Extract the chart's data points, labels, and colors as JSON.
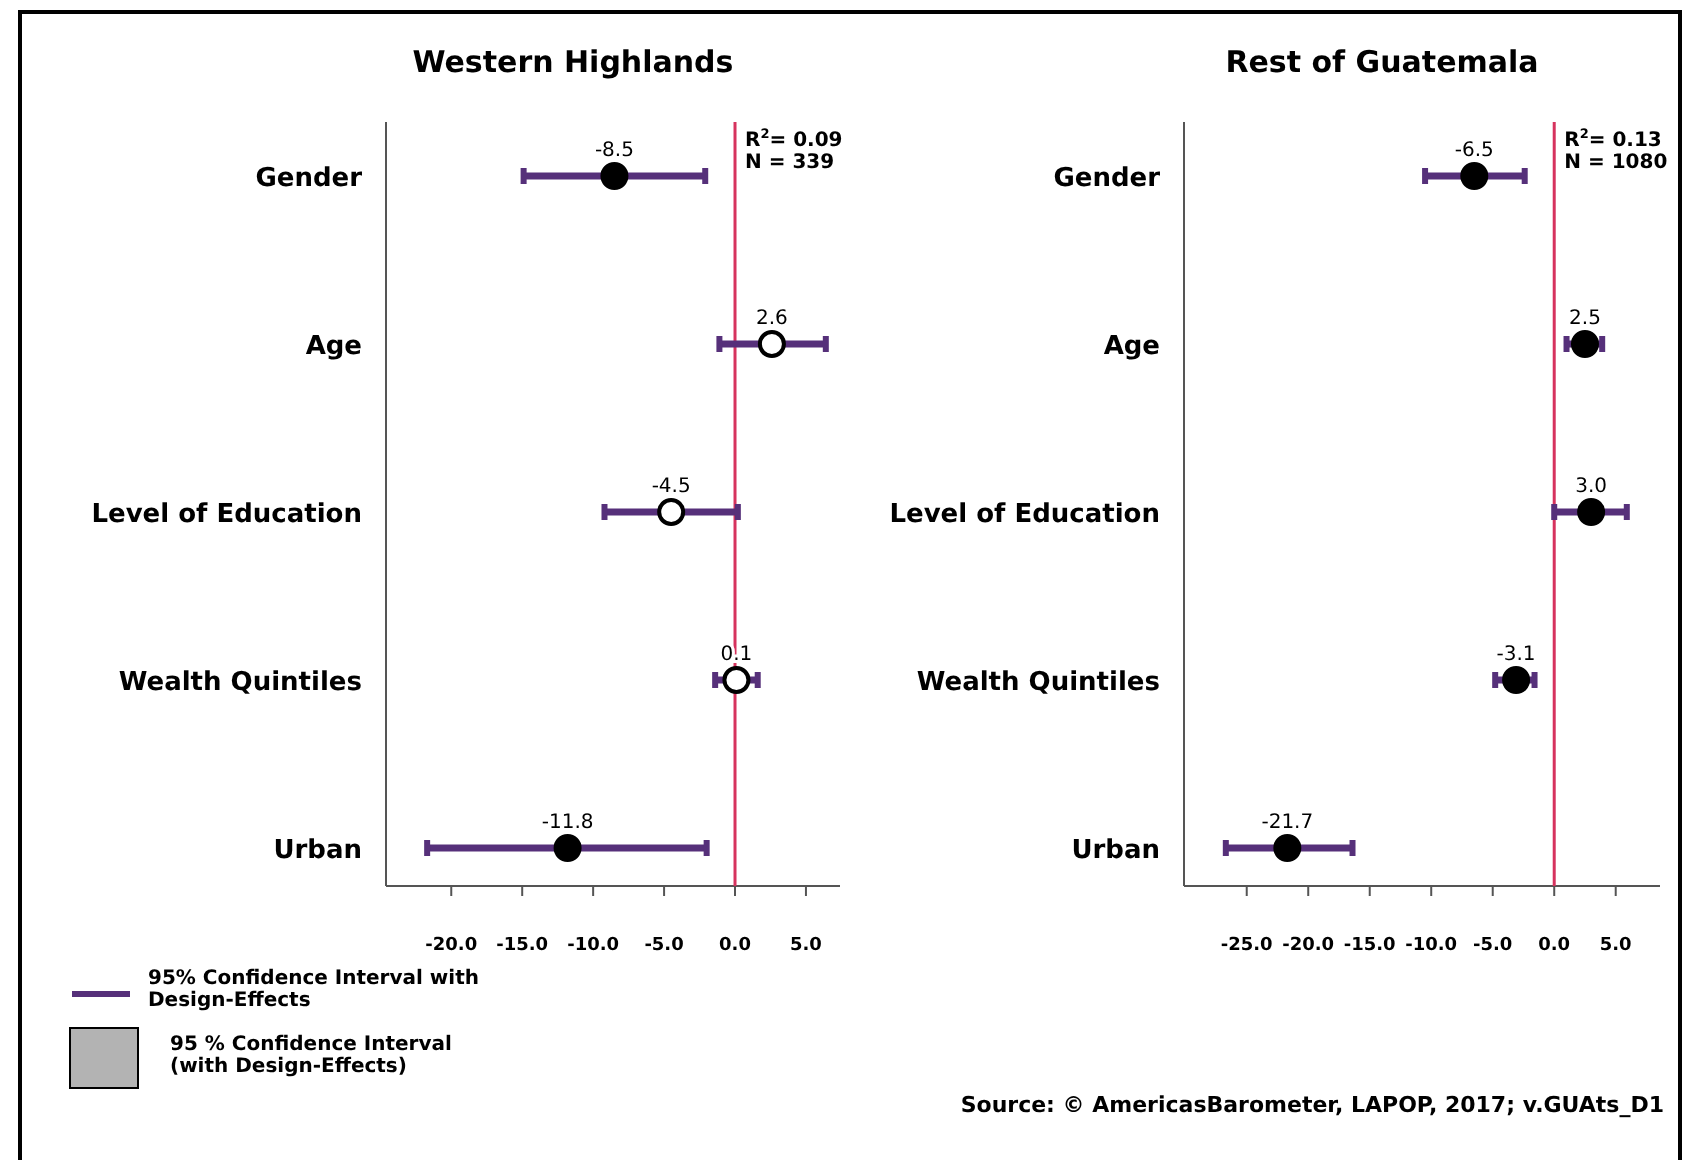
{
  "chart_data": [
    {
      "type": "scatter",
      "title": "Western Highlands",
      "orientation": "horizontal",
      "categories": [
        "Gender",
        "Age",
        "Level of Education",
        "Wealth Quintiles",
        "Urban"
      ],
      "series": [
        {
          "values": [
            -8.5,
            2.6,
            -4.5,
            0.1,
            -11.8
          ],
          "value_labels": [
            "-8.5",
            "2.6",
            "-4.5",
            "0.1",
            "-11.8"
          ],
          "color": "#56307a",
          "colors": [
            "#000000",
            "#ffffff",
            "#ffffff",
            "#ffffff",
            "#000000"
          ],
          "errors": [
            [
              -14.9,
              -2.1
            ],
            [
              -1.1,
              6.4
            ],
            [
              -9.2,
              0.2
            ],
            [
              -1.4,
              1.6
            ],
            [
              -21.7,
              -2.0
            ]
          ]
        }
      ],
      "marker": "circle",
      "xlim": [
        -24.6,
        7.4
      ],
      "xticks": [
        {
          "value": -20,
          "label": "-20.0"
        },
        {
          "value": -15,
          "label": "-15.0"
        },
        {
          "value": -10,
          "label": "-10.0"
        },
        {
          "value": -5,
          "label": "-5.0"
        },
        {
          "value": 0,
          "label": "0.0"
        },
        {
          "value": 5,
          "label": "5.0"
        }
      ],
      "ref_lines": [
        {
          "axis": "x",
          "value": 0,
          "color": "#d6335e"
        }
      ],
      "annotations": [
        "R$^{2}$= 0.09",
        "N = 339",
        "95% Confidence Interval with Design-Effects",
        "95 % Confidence Interval (with Design-Effects)"
      ]
    },
    {
      "type": "scatter",
      "title": "Rest of Guatemala",
      "orientation": "horizontal",
      "categories": [
        "Gender",
        "Age",
        "Level of Education",
        "Wealth Quintiles",
        "Urban"
      ],
      "series": [
        {
          "values": [
            -6.5,
            2.5,
            3.0,
            -3.1,
            -21.7
          ],
          "value_labels": [
            "-6.5",
            "2.5",
            "3.0",
            "-3.1",
            "-21.7"
          ],
          "color": "#56307a",
          "colors": [
            "#000000",
            "#000000",
            "#000000",
            "#000000",
            "#000000"
          ],
          "errors": [
            [
              -10.5,
              -2.4
            ],
            [
              1.0,
              3.9
            ],
            [
              0.0,
              5.9
            ],
            [
              -4.8,
              -1.6
            ],
            [
              -26.7,
              -16.4
            ]
          ]
        }
      ],
      "marker": "circle",
      "xlim": [
        -30.1,
        8.6
      ],
      "xticks": [
        {
          "value": -25,
          "label": "-25.0"
        },
        {
          "value": -20,
          "label": "-20.0"
        },
        {
          "value": -15,
          "label": "-15.0"
        },
        {
          "value": -10,
          "label": "-10.0"
        },
        {
          "value": -5,
          "label": "-5.0"
        },
        {
          "value": 0,
          "label": "0.0"
        },
        {
          "value": 5,
          "label": "5.0"
        }
      ],
      "ref_lines": [
        {
          "axis": "x",
          "value": 0,
          "color": "#d6335e"
        }
      ],
      "annotations": [
        "R$^{2}$= 0.13",
        "N = 1080",
        "Source: © AmericasBarometer, LAPOP, 2017; v.GUAts_D1"
      ]
    }
  ]
}
